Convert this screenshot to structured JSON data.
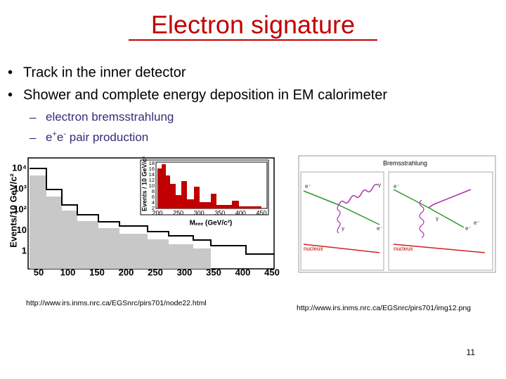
{
  "title": "Electron signature",
  "bullet_marker": "•",
  "sub_marker": "–",
  "bullets": [
    "Track in the inner detector",
    "Shower and complete energy deposition in EM calorimeter"
  ],
  "sub_bullets": [
    {
      "parts": [
        {
          "text": "electron bremsstrahlung"
        }
      ]
    },
    {
      "parts": [
        {
          "text": "e"
        },
        {
          "text": "+",
          "sup": true
        },
        {
          "text": "e"
        },
        {
          "text": "-",
          "sup": true
        },
        {
          "text": " pair production"
        }
      ]
    }
  ],
  "figures": [
    {
      "y_label": "Events/10 GeV/c²",
      "y_ticks": [
        "10⁴",
        "10³",
        "10²",
        "10",
        "1"
      ],
      "x_ticks": [
        "50",
        "100",
        "150",
        "200",
        "250",
        "300",
        "350",
        "400",
        "450"
      ],
      "inset": {
        "y_label": "Events / 10 GeV/c²",
        "y_ticks": [
          "18",
          "16",
          "14",
          "12",
          "10",
          "8",
          "6",
          "4",
          "2"
        ],
        "x_ticks": [
          "200",
          "250",
          "300",
          "350",
          "400",
          "450"
        ],
        "x_label": "Mₑₑₑ (GeV/c²)"
      }
    },
    {
      "title": "Bremsstrahlung",
      "labels": [
        "e⁻",
        "γ",
        "γ",
        "e⁻",
        "nucleus",
        "e⁻",
        "e⁻",
        "γ",
        "e⁻",
        "nucleus"
      ]
    }
  ],
  "captions": [
    "http://www.irs.inms.nrc.ca/EGSnrc/pirs701/node22.html",
    "http://www.irs.inms.nrc.ca/EGSnrc/pirs701/img12.png"
  ],
  "page_number": "11"
}
